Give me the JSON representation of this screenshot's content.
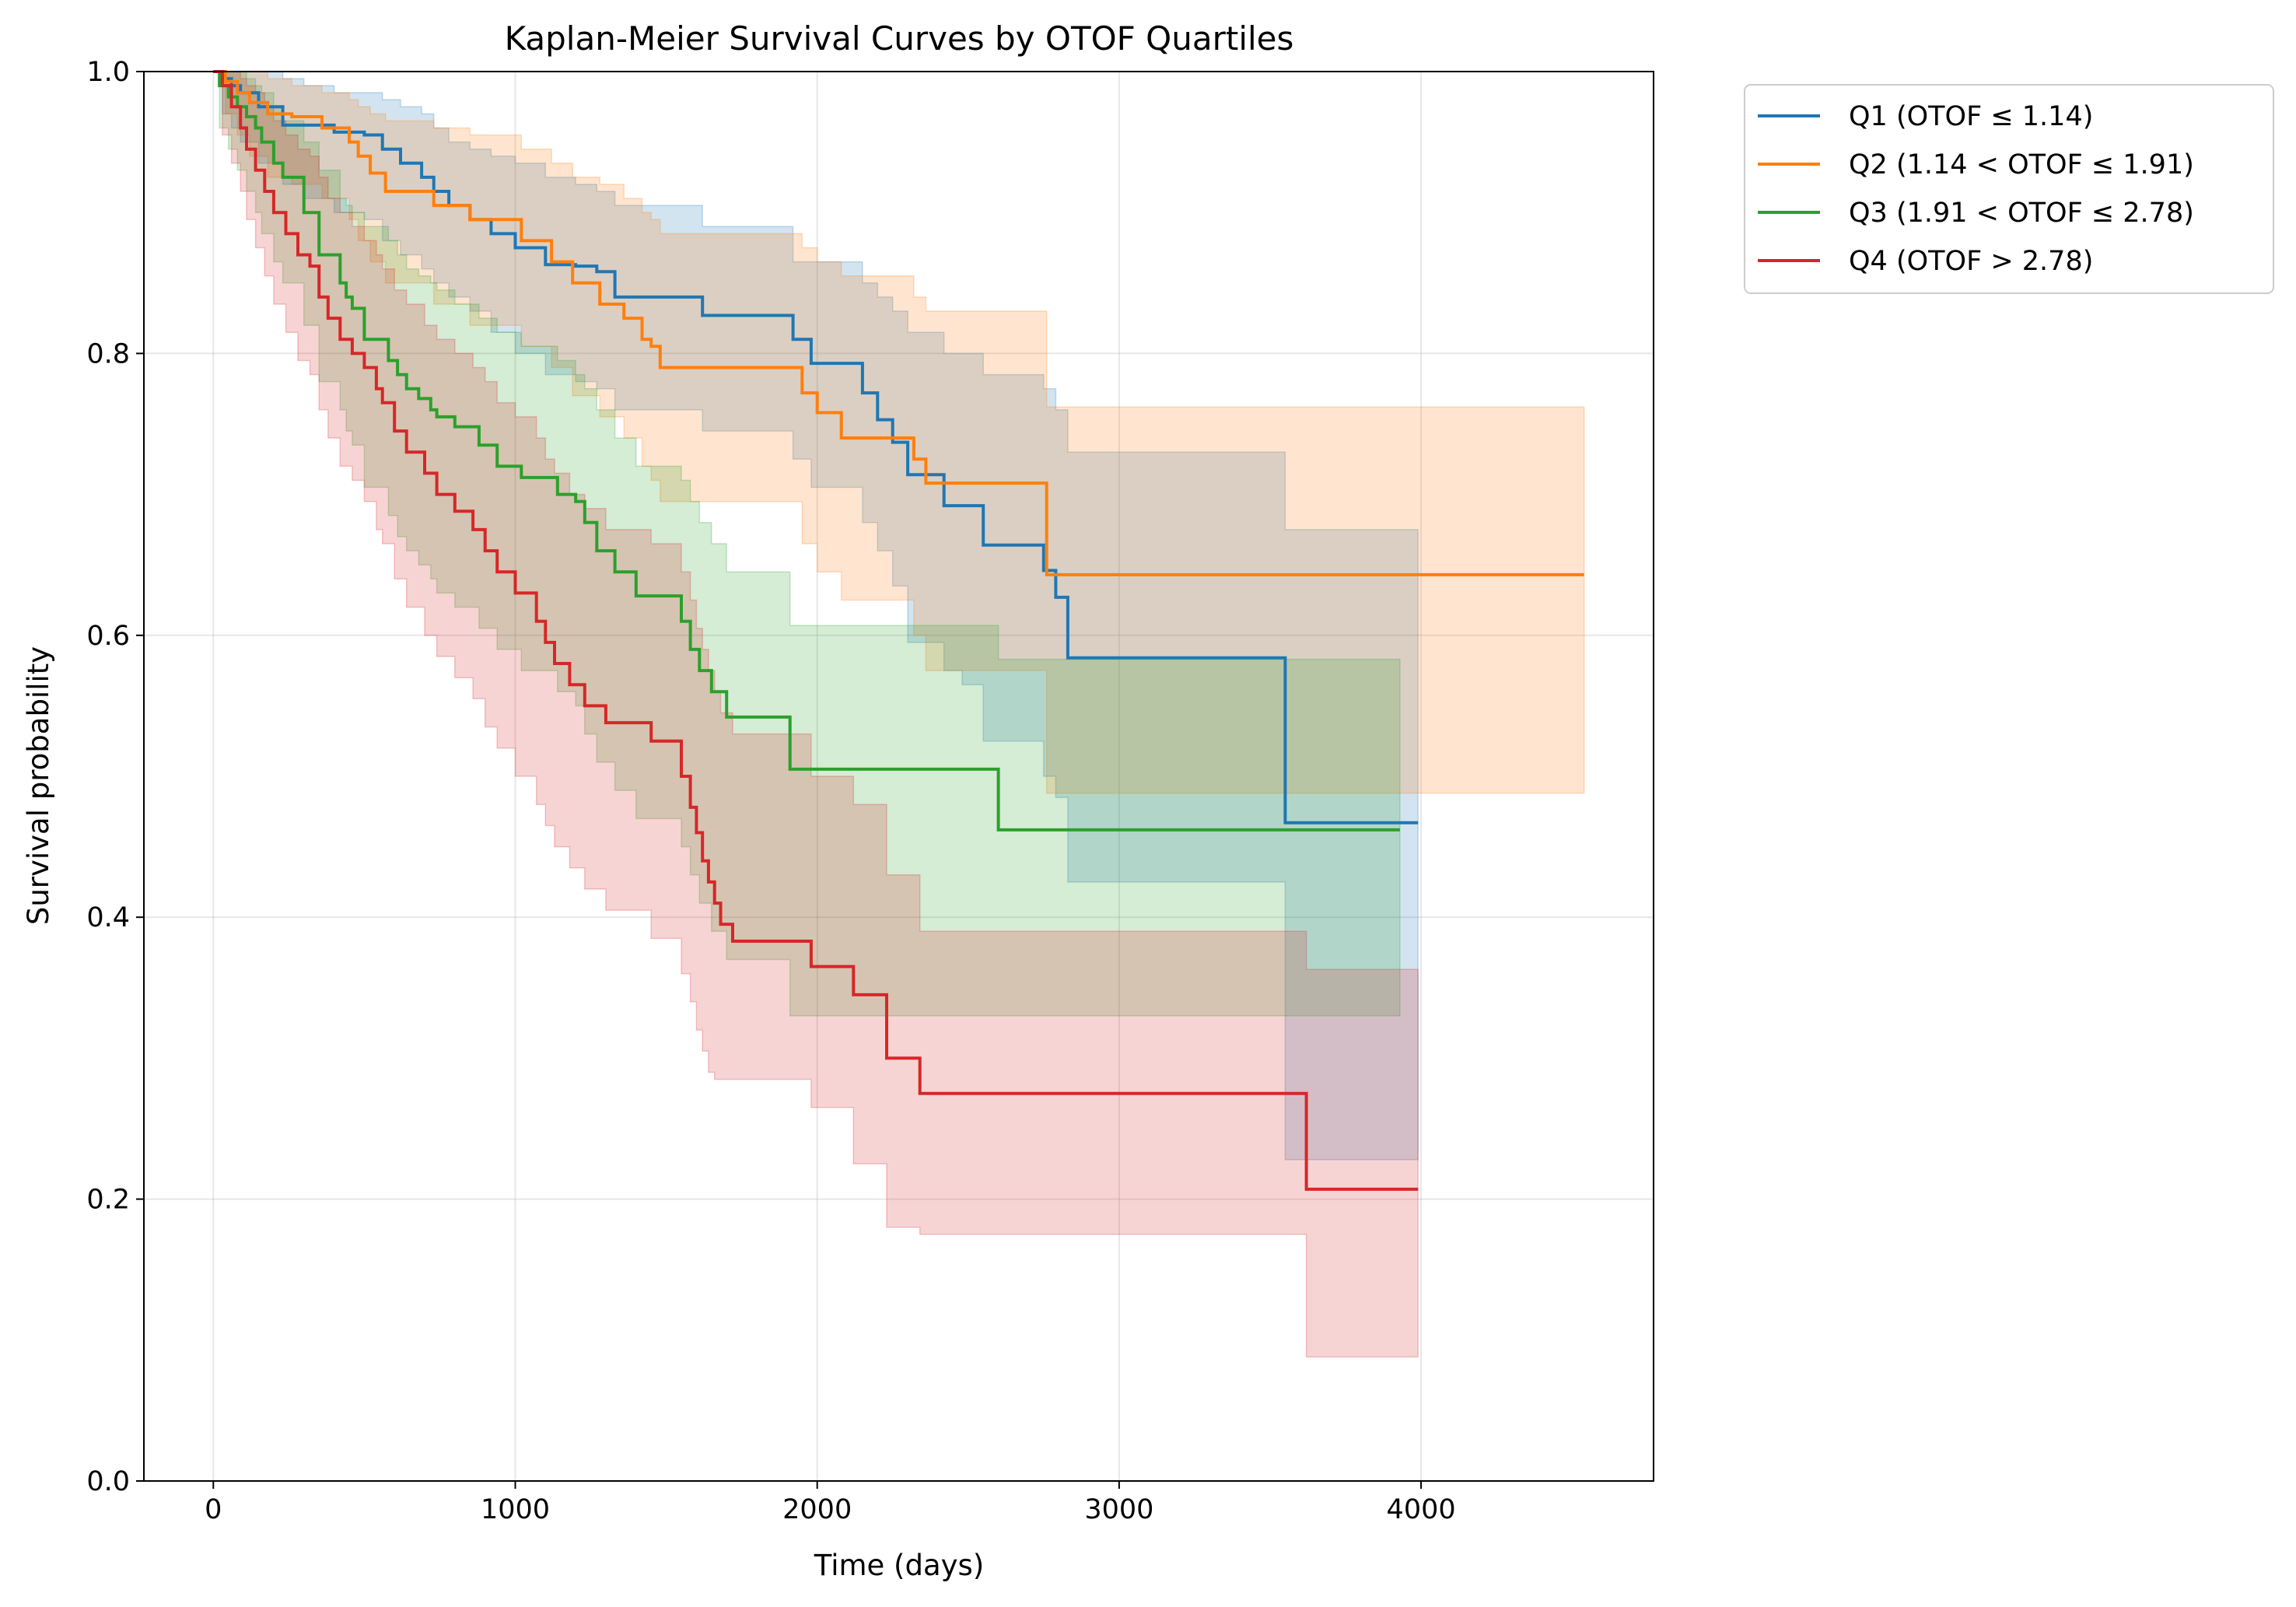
{
  "chart_data": {
    "type": "line",
    "title": "Kaplan-Meier Survival Curves by OTOF Quartiles",
    "xlabel": "Time (days)",
    "ylabel": "Survival probability",
    "xlim": [
      -230,
      4770
    ],
    "ylim": [
      0,
      1.0
    ],
    "xticks": [
      0,
      1000,
      2000,
      3000,
      4000
    ],
    "xtick_labels": [
      "0",
      "1000",
      "2000",
      "3000",
      "4000"
    ],
    "yticks": [
      0.0,
      0.2,
      0.4,
      0.6,
      0.8,
      1.0
    ],
    "ytick_labels": [
      "0.0",
      "0.2",
      "0.4",
      "0.6",
      "0.8",
      "1.0"
    ],
    "grid": true,
    "legend_position": "outside-top-right",
    "step": "post",
    "series": [
      {
        "name": "Q1 (OTOF ≤ 1.14)",
        "color": "#1f77b4",
        "x": [
          0,
          30,
          60,
          90,
          150,
          230,
          300,
          400,
          500,
          560,
          620,
          690,
          730,
          780,
          850,
          920,
          1000,
          1100,
          1200,
          1270,
          1330,
          1620,
          1920,
          1980,
          2150,
          2200,
          2250,
          2300,
          2420,
          2480,
          2550,
          2750,
          2790,
          2830,
          3550,
          3990
        ],
        "y": [
          1.0,
          0.995,
          0.99,
          0.985,
          0.975,
          0.962,
          0.962,
          0.957,
          0.955,
          0.945,
          0.935,
          0.925,
          0.915,
          0.905,
          0.895,
          0.885,
          0.875,
          0.863,
          0.862,
          0.858,
          0.84,
          0.827,
          0.81,
          0.793,
          0.772,
          0.753,
          0.737,
          0.714,
          0.692,
          0.692,
          0.664,
          0.646,
          0.627,
          0.584,
          0.467,
          0.467
        ],
        "ci_lower": [
          1.0,
          0.97,
          0.96,
          0.95,
          0.935,
          0.92,
          0.91,
          0.9,
          0.895,
          0.88,
          0.87,
          0.86,
          0.85,
          0.84,
          0.83,
          0.815,
          0.8,
          0.785,
          0.78,
          0.775,
          0.76,
          0.745,
          0.725,
          0.705,
          0.68,
          0.66,
          0.635,
          0.595,
          0.575,
          0.565,
          0.525,
          0.5,
          0.485,
          0.425,
          0.228,
          0.228
        ],
        "ci_upper": [
          1.0,
          1.0,
          1.0,
          1.0,
          1.0,
          0.995,
          0.99,
          0.985,
          0.985,
          0.98,
          0.975,
          0.97,
          0.96,
          0.95,
          0.945,
          0.94,
          0.935,
          0.925,
          0.92,
          0.915,
          0.905,
          0.89,
          0.865,
          0.865,
          0.85,
          0.84,
          0.83,
          0.815,
          0.8,
          0.8,
          0.785,
          0.775,
          0.76,
          0.73,
          0.675,
          0.675
        ]
      },
      {
        "name": "Q2 (1.14 < OTOF ≤ 1.91)",
        "color": "#ff7f0e",
        "x": [
          0,
          40,
          80,
          120,
          180,
          260,
          360,
          450,
          480,
          520,
          570,
          730,
          850,
          1020,
          1120,
          1190,
          1280,
          1360,
          1420,
          1450,
          1480,
          1950,
          2000,
          2080,
          2320,
          2360,
          2760,
          4540
        ],
        "y": [
          1.0,
          0.993,
          0.985,
          0.978,
          0.97,
          0.968,
          0.96,
          0.95,
          0.94,
          0.928,
          0.915,
          0.905,
          0.895,
          0.88,
          0.865,
          0.85,
          0.835,
          0.825,
          0.81,
          0.805,
          0.79,
          0.772,
          0.758,
          0.74,
          0.725,
          0.708,
          0.643,
          0.643
        ],
        "ci_lower": [
          1.0,
          0.97,
          0.955,
          0.94,
          0.925,
          0.92,
          0.91,
          0.895,
          0.88,
          0.865,
          0.85,
          0.835,
          0.82,
          0.805,
          0.79,
          0.77,
          0.755,
          0.74,
          0.72,
          0.71,
          0.695,
          0.665,
          0.645,
          0.625,
          0.6,
          0.575,
          0.488,
          0.488
        ],
        "ci_upper": [
          1.0,
          1.0,
          1.0,
          1.0,
          0.995,
          0.99,
          0.985,
          0.98,
          0.975,
          0.97,
          0.965,
          0.96,
          0.955,
          0.945,
          0.935,
          0.925,
          0.92,
          0.91,
          0.9,
          0.895,
          0.885,
          0.875,
          0.865,
          0.855,
          0.84,
          0.83,
          0.762,
          0.762
        ]
      },
      {
        "name": "Q3 (1.91 < OTOF ≤ 2.78)",
        "color": "#2ca02c",
        "x": [
          0,
          20,
          50,
          80,
          110,
          140,
          160,
          200,
          230,
          300,
          350,
          420,
          440,
          460,
          500,
          580,
          610,
          640,
          680,
          720,
          740,
          800,
          880,
          940,
          1020,
          1140,
          1200,
          1230,
          1270,
          1330,
          1400,
          1550,
          1580,
          1610,
          1650,
          1700,
          1910,
          2600,
          3930
        ],
        "y": [
          1.0,
          0.99,
          0.982,
          0.975,
          0.968,
          0.96,
          0.95,
          0.935,
          0.925,
          0.9,
          0.87,
          0.85,
          0.84,
          0.832,
          0.81,
          0.795,
          0.785,
          0.775,
          0.768,
          0.76,
          0.755,
          0.748,
          0.735,
          0.72,
          0.712,
          0.7,
          0.695,
          0.68,
          0.66,
          0.645,
          0.628,
          0.61,
          0.59,
          0.575,
          0.56,
          0.542,
          0.505,
          0.462,
          0.462
        ],
        "ci_lower": [
          1.0,
          0.96,
          0.945,
          0.93,
          0.915,
          0.9,
          0.885,
          0.865,
          0.85,
          0.82,
          0.78,
          0.76,
          0.745,
          0.735,
          0.705,
          0.685,
          0.67,
          0.66,
          0.65,
          0.64,
          0.63,
          0.62,
          0.605,
          0.59,
          0.575,
          0.56,
          0.55,
          0.53,
          0.51,
          0.49,
          0.47,
          0.45,
          0.43,
          0.41,
          0.39,
          0.37,
          0.33,
          0.33,
          0.33
        ],
        "ci_upper": [
          1.0,
          1.0,
          1.0,
          1.0,
          0.995,
          0.99,
          0.985,
          0.975,
          0.965,
          0.95,
          0.93,
          0.91,
          0.905,
          0.9,
          0.89,
          0.88,
          0.87,
          0.86,
          0.855,
          0.85,
          0.845,
          0.835,
          0.825,
          0.815,
          0.805,
          0.795,
          0.785,
          0.775,
          0.76,
          0.74,
          0.72,
          0.71,
          0.695,
          0.68,
          0.665,
          0.645,
          0.607,
          0.583,
          0.583
        ]
      },
      {
        "name": "Q4 (OTOF > 2.78)",
        "color": "#d62728",
        "x": [
          0,
          30,
          60,
          90,
          110,
          140,
          170,
          200,
          240,
          280,
          320,
          350,
          380,
          420,
          460,
          500,
          540,
          560,
          600,
          640,
          700,
          740,
          800,
          860,
          900,
          940,
          1000,
          1070,
          1100,
          1130,
          1180,
          1230,
          1300,
          1450,
          1550,
          1580,
          1600,
          1620,
          1640,
          1660,
          1680,
          1720,
          1980,
          2120,
          2230,
          2340,
          3620,
          3990
        ],
        "y": [
          1.0,
          0.99,
          0.975,
          0.96,
          0.945,
          0.93,
          0.915,
          0.9,
          0.885,
          0.87,
          0.862,
          0.84,
          0.825,
          0.81,
          0.8,
          0.79,
          0.775,
          0.765,
          0.745,
          0.73,
          0.715,
          0.7,
          0.688,
          0.675,
          0.66,
          0.645,
          0.63,
          0.61,
          0.595,
          0.58,
          0.565,
          0.55,
          0.538,
          0.525,
          0.5,
          0.478,
          0.46,
          0.44,
          0.425,
          0.41,
          0.395,
          0.383,
          0.365,
          0.345,
          0.3,
          0.275,
          0.207,
          0.207
        ],
        "ci_lower": [
          1.0,
          0.955,
          0.935,
          0.915,
          0.895,
          0.875,
          0.855,
          0.835,
          0.815,
          0.795,
          0.785,
          0.76,
          0.74,
          0.72,
          0.71,
          0.695,
          0.675,
          0.665,
          0.64,
          0.62,
          0.6,
          0.585,
          0.57,
          0.555,
          0.535,
          0.52,
          0.5,
          0.48,
          0.465,
          0.45,
          0.435,
          0.42,
          0.405,
          0.385,
          0.36,
          0.34,
          0.32,
          0.305,
          0.29,
          0.285,
          0.285,
          0.285,
          0.265,
          0.225,
          0.18,
          0.175,
          0.088,
          0.088
        ],
        "ci_upper": [
          1.0,
          1.0,
          1.0,
          0.995,
          0.99,
          0.985,
          0.975,
          0.965,
          0.955,
          0.945,
          0.94,
          0.925,
          0.91,
          0.9,
          0.89,
          0.88,
          0.87,
          0.86,
          0.845,
          0.835,
          0.82,
          0.81,
          0.8,
          0.79,
          0.78,
          0.765,
          0.755,
          0.74,
          0.725,
          0.715,
          0.7,
          0.69,
          0.675,
          0.665,
          0.645,
          0.625,
          0.605,
          0.59,
          0.575,
          0.56,
          0.545,
          0.53,
          0.5,
          0.48,
          0.43,
          0.39,
          0.363,
          0.363
        ]
      }
    ]
  }
}
